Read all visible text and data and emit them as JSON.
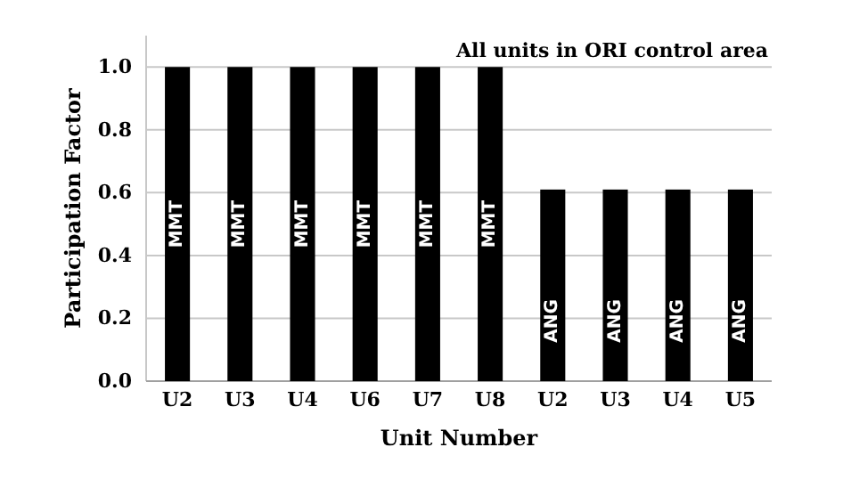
{
  "chart_data": {
    "type": "bar",
    "xlabel": "Unit Number",
    "ylabel": "Participation Factor",
    "annotations": [
      "All units in ORI control area"
    ],
    "categories": [
      "U2",
      "U3",
      "U4",
      "U6",
      "U7",
      "U8",
      "U2",
      "U3",
      "U4",
      "U5"
    ],
    "series": [
      {
        "name": "MMT",
        "color": "#000000",
        "values": [
          1.0,
          1.0,
          1.0,
          1.0,
          1.0,
          1.0,
          null,
          null,
          null,
          null
        ]
      },
      {
        "name": "ANG",
        "color": "#000000",
        "values": [
          null,
          null,
          null,
          null,
          null,
          null,
          0.61,
          0.61,
          0.61,
          0.61
        ]
      }
    ],
    "ylim": [
      0,
      1.1
    ],
    "yticks": [
      {
        "value": 0,
        "label": "0.0"
      },
      {
        "value": 0.2,
        "label": "0.2"
      },
      {
        "value": 0.4,
        "label": "0.4"
      },
      {
        "value": 0.6,
        "label": "0.6"
      },
      {
        "value": 0.8,
        "label": "0.8"
      },
      {
        "value": 1,
        "label": "1.0"
      }
    ],
    "grid": "y"
  }
}
